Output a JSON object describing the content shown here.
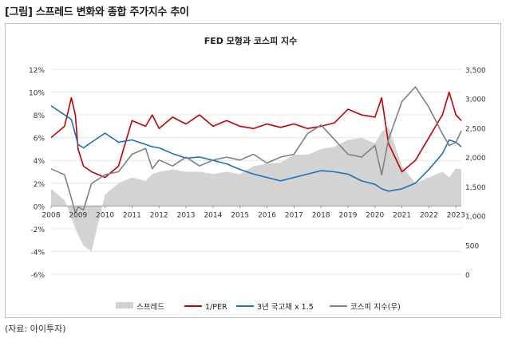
{
  "figure_title": "[그림] 스프레드 변화와 종합 주가지수 추이",
  "source": "(자료: 아이투자)",
  "chart_data": {
    "type": "area",
    "title": "FED 모형과 코스피 지수",
    "x_ticks": [
      "2008",
      "2009",
      "2010",
      "2011",
      "2012",
      "2013",
      "2014",
      "2015",
      "2016",
      "2017",
      "2018",
      "2019",
      "2020",
      "2021",
      "2022",
      "2023"
    ],
    "y_left": {
      "ticks": [
        "12%",
        "10%",
        "8%",
        "6%",
        "4%",
        "2%",
        "0%",
        "-2%",
        "-4%",
        "-6%"
      ],
      "range": [
        -6,
        12
      ]
    },
    "y_right": {
      "ticks": [
        "3,500",
        "3,000",
        "2,500",
        "2,000",
        "1,500",
        "1,000",
        "500",
        "0"
      ],
      "range": [
        0,
        3500
      ]
    },
    "x": [
      2008.0,
      2008.5,
      2008.75,
      2008.9,
      2009.0,
      2009.2,
      2009.5,
      2010.0,
      2010.5,
      2011.0,
      2011.5,
      2011.75,
      2012.0,
      2012.5,
      2013.0,
      2013.5,
      2014.0,
      2014.5,
      2015.0,
      2015.5,
      2016.0,
      2016.5,
      2017.0,
      2017.5,
      2018.0,
      2018.5,
      2019.0,
      2019.5,
      2020.0,
      2020.25,
      2020.5,
      2021.0,
      2021.5,
      2022.0,
      2022.5,
      2022.75,
      2023.0,
      2023.2
    ],
    "series": [
      {
        "name": "스프레드",
        "axis": "left",
        "color": "#d3d3d3",
        "render": "area",
        "values": [
          1.5,
          0.5,
          -1.0,
          -2.0,
          -2.5,
          -3.5,
          -4.0,
          1.0,
          2.0,
          2.5,
          2.2,
          2.8,
          3.0,
          3.2,
          3.0,
          3.0,
          2.8,
          3.0,
          2.8,
          3.5,
          3.7,
          3.8,
          4.5,
          4.5,
          5.0,
          5.2,
          5.8,
          6.0,
          5.5,
          6.5,
          7.0,
          3.5,
          2.0,
          2.5,
          3.0,
          2.5,
          3.3,
          3.2
        ]
      },
      {
        "name": "1/PER",
        "axis": "left",
        "color": "#c00000",
        "render": "line",
        "values": [
          6.0,
          7.0,
          9.5,
          8.0,
          5.0,
          3.5,
          3.0,
          2.5,
          3.5,
          7.5,
          7.0,
          8.0,
          6.8,
          7.8,
          7.2,
          8.0,
          7.0,
          7.5,
          7.0,
          6.8,
          7.2,
          6.9,
          7.2,
          6.8,
          7.0,
          7.3,
          8.5,
          8.0,
          7.8,
          9.5,
          5.5,
          3.0,
          4.0,
          6.0,
          8.0,
          10.0,
          8.0,
          7.5
        ]
      },
      {
        "name": "3년 국고채 x 1.5",
        "axis": "left",
        "color": "#1f6fb5",
        "render": "line",
        "values": [
          8.8,
          8.0,
          7.6,
          6.3,
          5.4,
          5.1,
          5.6,
          6.4,
          5.6,
          5.8,
          5.4,
          5.2,
          5.1,
          4.6,
          4.2,
          4.3,
          4.0,
          3.7,
          3.2,
          2.8,
          2.5,
          2.2,
          2.5,
          2.8,
          3.1,
          3.0,
          2.8,
          2.2,
          1.9,
          1.5,
          1.3,
          1.5,
          2.0,
          3.2,
          4.6,
          5.8,
          5.6,
          5.2
        ]
      },
      {
        "name": "코스피 지수(우)",
        "axis": "right",
        "color": "#808080",
        "render": "line",
        "values": [
          1800,
          1700,
          1300,
          1050,
          1150,
          1100,
          1550,
          1700,
          1750,
          2050,
          2150,
          1800,
          1950,
          1850,
          2000,
          1850,
          1950,
          2000,
          1950,
          2050,
          1900,
          2000,
          2050,
          2400,
          2550,
          2300,
          2050,
          2000,
          2200,
          1700,
          2300,
          2950,
          3200,
          2850,
          2400,
          2200,
          2250,
          2450
        ]
      }
    ]
  }
}
